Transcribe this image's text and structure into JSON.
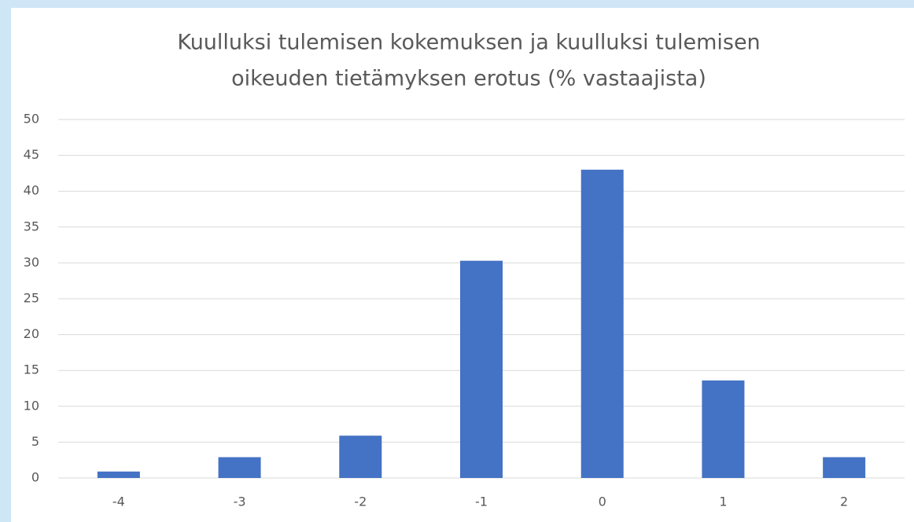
{
  "chart_data": {
    "type": "bar",
    "title": [
      "Kuulluksi tulemisen kokemuksen ja kuulluksi tulemisen",
      "oikeuden tietämyksen erotus (% vastaajista)"
    ],
    "categories": [
      "-4",
      "-3",
      "-2",
      "-1",
      "0",
      "1",
      "2"
    ],
    "values": [
      0.9,
      2.9,
      5.9,
      30.3,
      43.0,
      13.6,
      2.9
    ],
    "color": "#4472c4",
    "ylim": [
      0,
      50
    ],
    "yticks": [
      0,
      5,
      10,
      15,
      20,
      25,
      30,
      35,
      40,
      45,
      50
    ],
    "grid": true
  }
}
